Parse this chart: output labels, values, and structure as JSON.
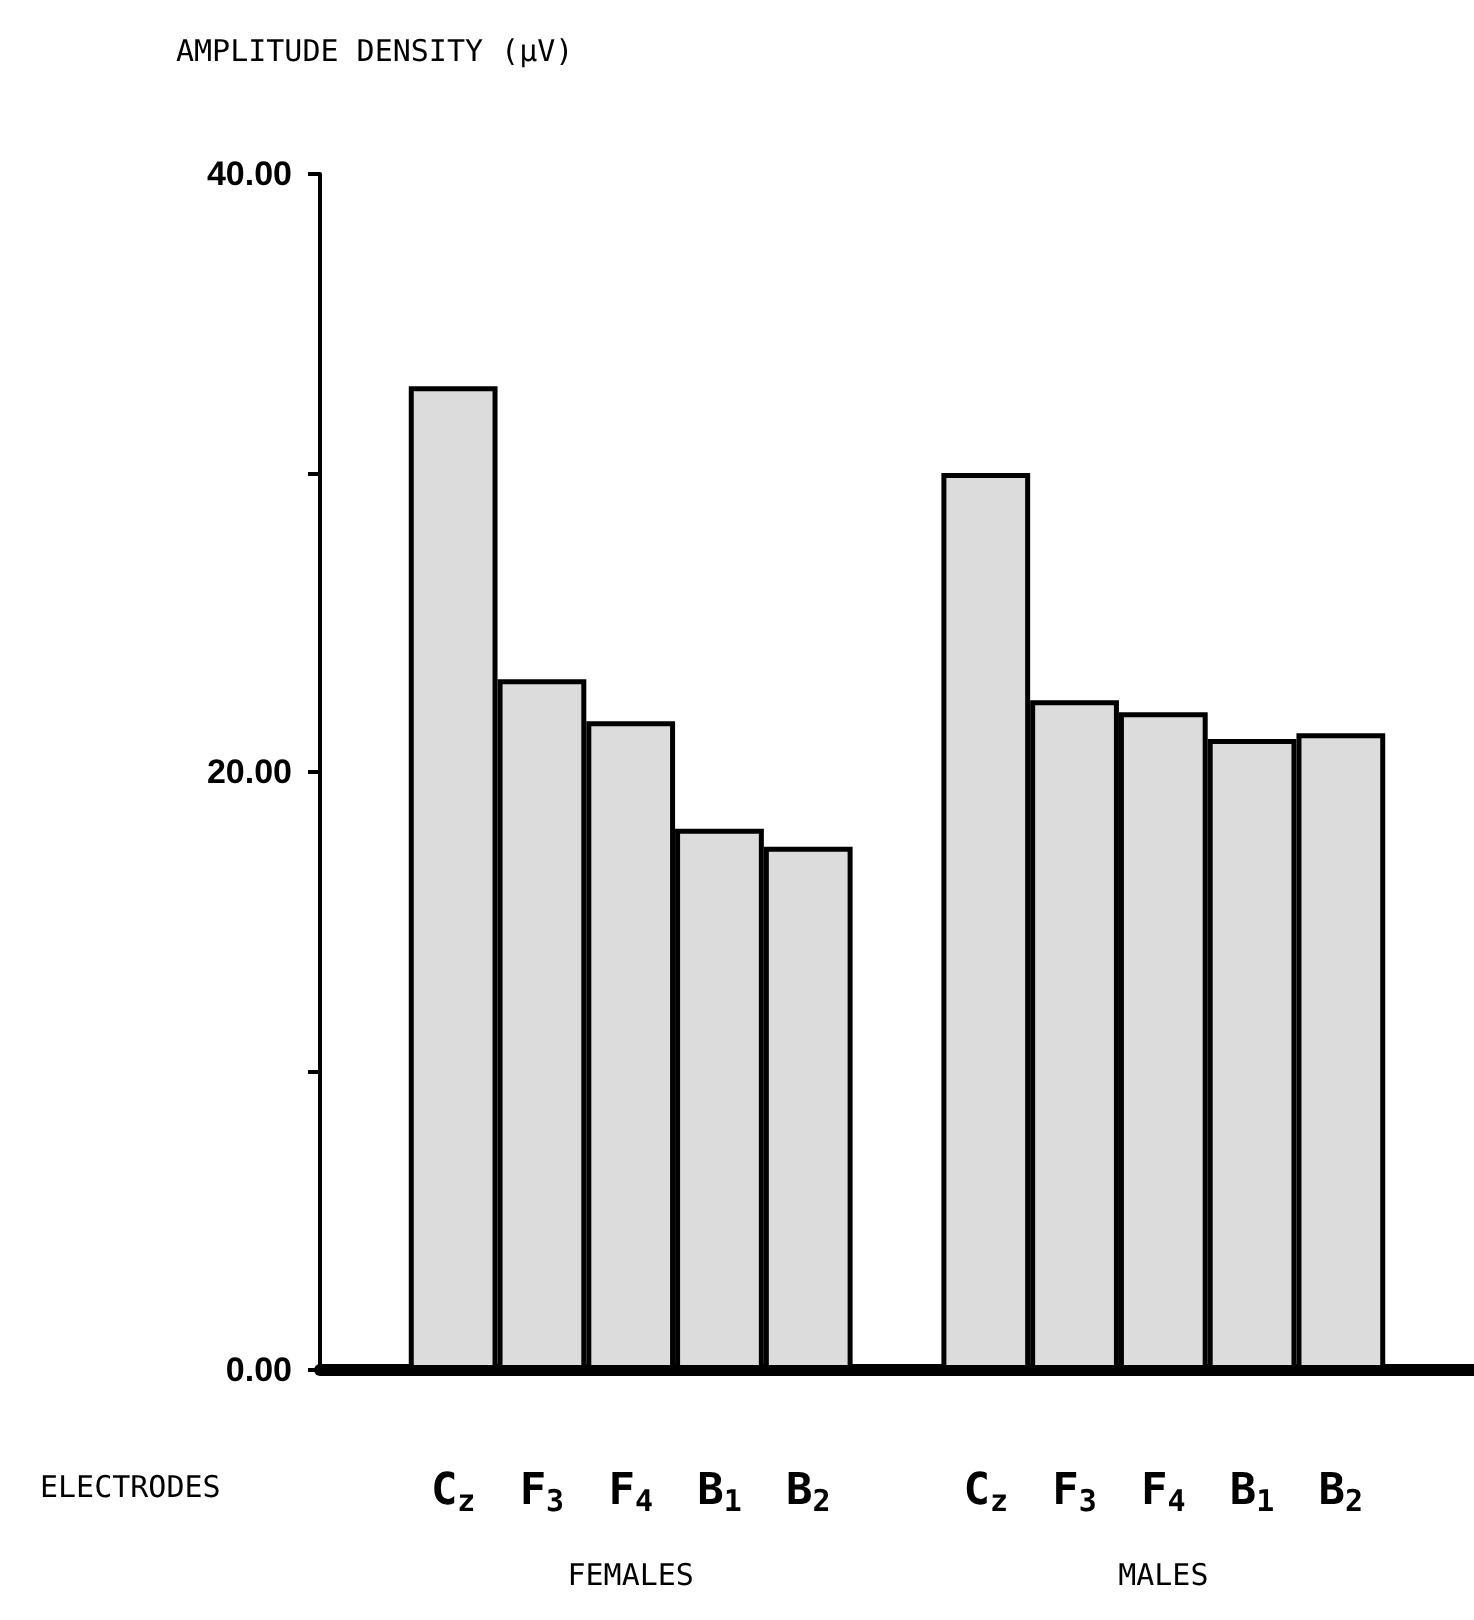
{
  "chart_data": {
    "type": "bar",
    "ylabel": "AMPLITUDE DENSITY (μV)",
    "xlabel": "ELECTRODES",
    "categories": [
      null,
      "C$_{z}$",
      "F$_{3}$",
      "F$_{4}$",
      "B$_{1}$",
      "B$_{2}$",
      null,
      "C$_{z}$",
      "F$_{3}$",
      "F$_{4}$",
      "B$_{1}$",
      "B$_{2}$",
      null
    ],
    "values": [
      null,
      32.9,
      23.1,
      21.7,
      18.1,
      17.5,
      null,
      30.0,
      22.4,
      22.0,
      21.1,
      21.3,
      null
    ],
    "color": "#dcdcdc",
    "ylim": [
      0,
      40
    ],
    "yticks": [
      {
        "value": 0,
        "label": "0.00"
      },
      {
        "value": 10,
        "label": null
      },
      {
        "value": 20,
        "label": "20.00"
      },
      {
        "value": 30,
        "label": null
      },
      {
        "value": 40,
        "label": "40.00"
      }
    ],
    "annotations": [
      "FEMALES",
      "MALES"
    ]
  }
}
